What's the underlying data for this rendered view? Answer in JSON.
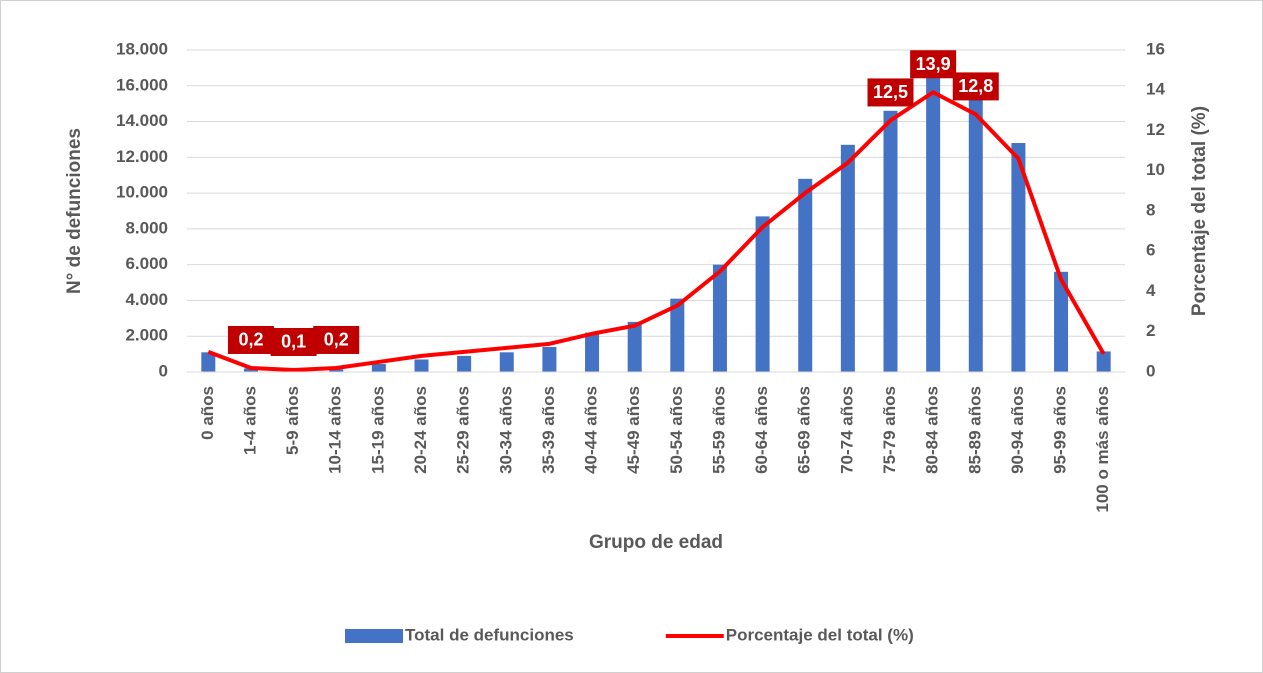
{
  "chart_data": {
    "type": "bar-line",
    "xlabel": "Grupo de edad",
    "ylabel": "N° de defunciones",
    "y2label": "Porcentaje del total (%)",
    "categories": [
      "0 años",
      "1-4 años",
      "5-9 años",
      "10-14 años",
      "15-19 años",
      "20-24 años",
      "25-29 años",
      "30-34 años",
      "35-39 años",
      "40-44 años",
      "45-49 años",
      "50-54 años",
      "55-59 años",
      "60-64 años",
      "65-69 años",
      "70-74 años",
      "75-79 años",
      "80-84 años",
      "85-89 años",
      "90-94 años",
      "95-99 años",
      "100 o más años"
    ],
    "series": [
      {
        "name": "Total de defunciones",
        "type": "bar",
        "color": "#4472c4",
        "values": [
          1100,
          200,
          100,
          150,
          450,
          700,
          900,
          1100,
          1400,
          2200,
          2800,
          4100,
          6000,
          8700,
          10800,
          12700,
          14600,
          16500,
          15400,
          12800,
          5600,
          1150
        ]
      },
      {
        "name": "Porcentaje del total (%)",
        "type": "line",
        "axis": "y2",
        "color": "#ff0000",
        "values": [
          1.0,
          0.2,
          0.1,
          0.2,
          0.5,
          0.8,
          1.0,
          1.2,
          1.4,
          1.9,
          2.3,
          3.3,
          5.0,
          7.2,
          8.9,
          10.4,
          12.5,
          13.9,
          12.8,
          10.6,
          4.6,
          0.9
        ],
        "value_labels": [
          null,
          "0,2",
          "0,1",
          "0,2",
          null,
          null,
          null,
          null,
          null,
          null,
          null,
          null,
          null,
          null,
          null,
          null,
          "12,5",
          "13,9",
          "12,8",
          null,
          null,
          null
        ]
      }
    ],
    "ylim": [
      0,
      18000
    ],
    "yticks": [
      0,
      {
        "value": 2000,
        "label": "2.000"
      },
      {
        "value": 4000,
        "label": "4.000"
      },
      {
        "value": 6000,
        "label": "6.000"
      },
      {
        "value": 8000,
        "label": "8.000"
      },
      {
        "value": 10000,
        "label": "10.000"
      },
      {
        "value": 12000,
        "label": "12.000"
      },
      {
        "value": 14000,
        "label": "14.000"
      },
      {
        "value": 16000,
        "label": "16.000"
      },
      {
        "value": 18000,
        "label": "18.000"
      }
    ],
    "y2lim": [
      0,
      16
    ],
    "y2ticks": [
      0,
      2,
      4,
      6,
      8,
      10,
      12,
      14,
      16
    ],
    "grid": true,
    "legend": "bottom"
  }
}
